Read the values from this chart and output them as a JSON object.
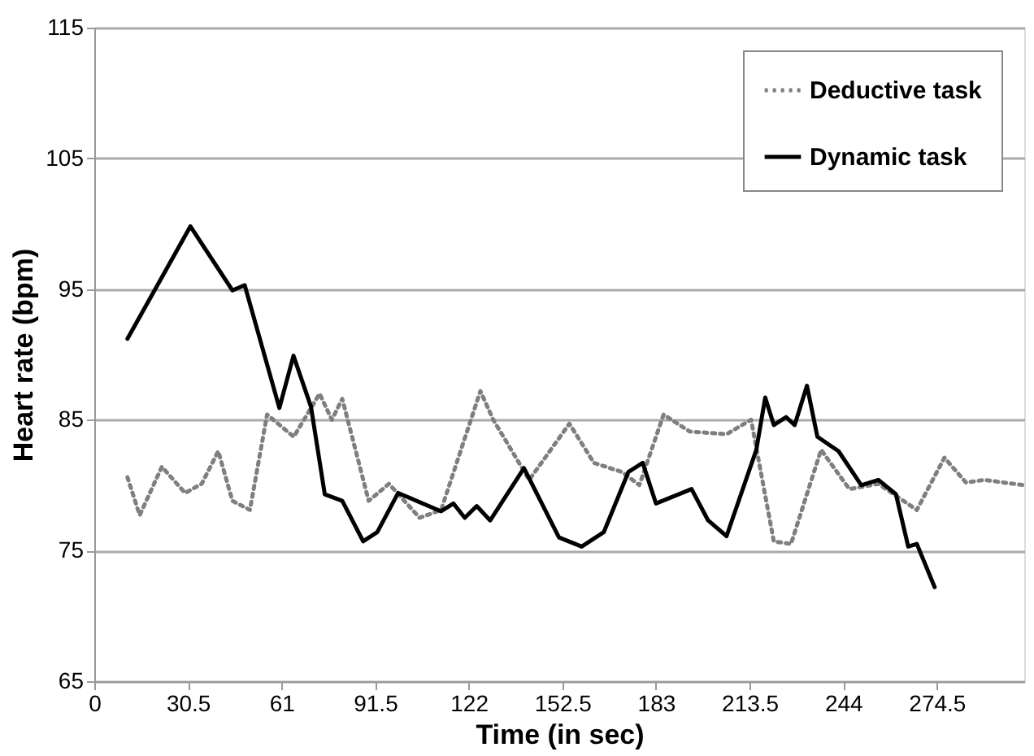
{
  "chart_data": {
    "type": "line",
    "xlabel": "Time (in sec)",
    "ylabel": "Heart rate  (bpm)",
    "xlim": [
      0,
      303
    ],
    "xticks": [
      0,
      30.5,
      61,
      91.5,
      122,
      152.5,
      183,
      213.5,
      244,
      274.5
    ],
    "ylim": [
      65,
      115
    ],
    "yticks": [
      65,
      75,
      85,
      95,
      105,
      115
    ],
    "grid": "y",
    "legend": "top right",
    "marker": "none",
    "series": [
      {
        "name": "Deductive task",
        "color": "#7f7f7f",
        "line_style": "dotted",
        "x": [
          10.8,
          14.8,
          22,
          29.6,
          35,
          40.4,
          45,
          50.7,
          56.3,
          65,
          73.4,
          77.4,
          80.8,
          89.4,
          96,
          106,
          113,
          125.8,
          130,
          141.7,
          154.8,
          162.8,
          172,
          177.6,
          185.5,
          194,
          206,
          214,
          221.4,
          227,
          236.8,
          246,
          255.5,
          268,
          277,
          284,
          290,
          302.8
        ],
        "values": [
          80.6,
          77.7,
          81.4,
          79.4,
          80.1,
          82.6,
          78.8,
          78.1,
          85.4,
          83.7,
          87,
          85,
          86.6,
          78.8,
          80.1,
          77.5,
          78.1,
          87.2,
          85,
          80.4,
          84.7,
          81.7,
          81,
          80,
          85.4,
          84.1,
          83.9,
          85,
          75.7,
          75.5,
          82.7,
          79.7,
          80.1,
          78.1,
          82.1,
          80.2,
          80.4,
          80
        ]
      },
      {
        "name": "Dynamic task",
        "color": "#000000",
        "line_style": "solid",
        "x": [
          10.8,
          31.3,
          45,
          49,
          60.3,
          64.9,
          70.6,
          75.1,
          80.8,
          87.6,
          92.2,
          99,
          113,
          117,
          120.7,
          124.6,
          129,
          140,
          151.4,
          158.8,
          166,
          174,
          178.7,
          183,
          194.6,
          200,
          206,
          215.7,
          218.6,
          221.4,
          225.4,
          228.2,
          232.2,
          235.6,
          242.5,
          249.9,
          255.5,
          261.2,
          265.2,
          268,
          273.8
        ],
        "values": [
          91.2,
          99.8,
          94.9,
          95.3,
          85.9,
          89.9,
          86,
          79.3,
          78.8,
          75.7,
          76.4,
          79.4,
          78,
          78.6,
          77.5,
          78.4,
          77.3,
          81.3,
          76,
          75.3,
          76.4,
          81,
          81.7,
          78.6,
          79.7,
          77.3,
          76.1,
          82.7,
          86.7,
          84.6,
          85.2,
          84.6,
          87.6,
          83.7,
          82.6,
          80,
          80.4,
          79.3,
          75.3,
          75.5,
          72.2
        ]
      }
    ]
  }
}
